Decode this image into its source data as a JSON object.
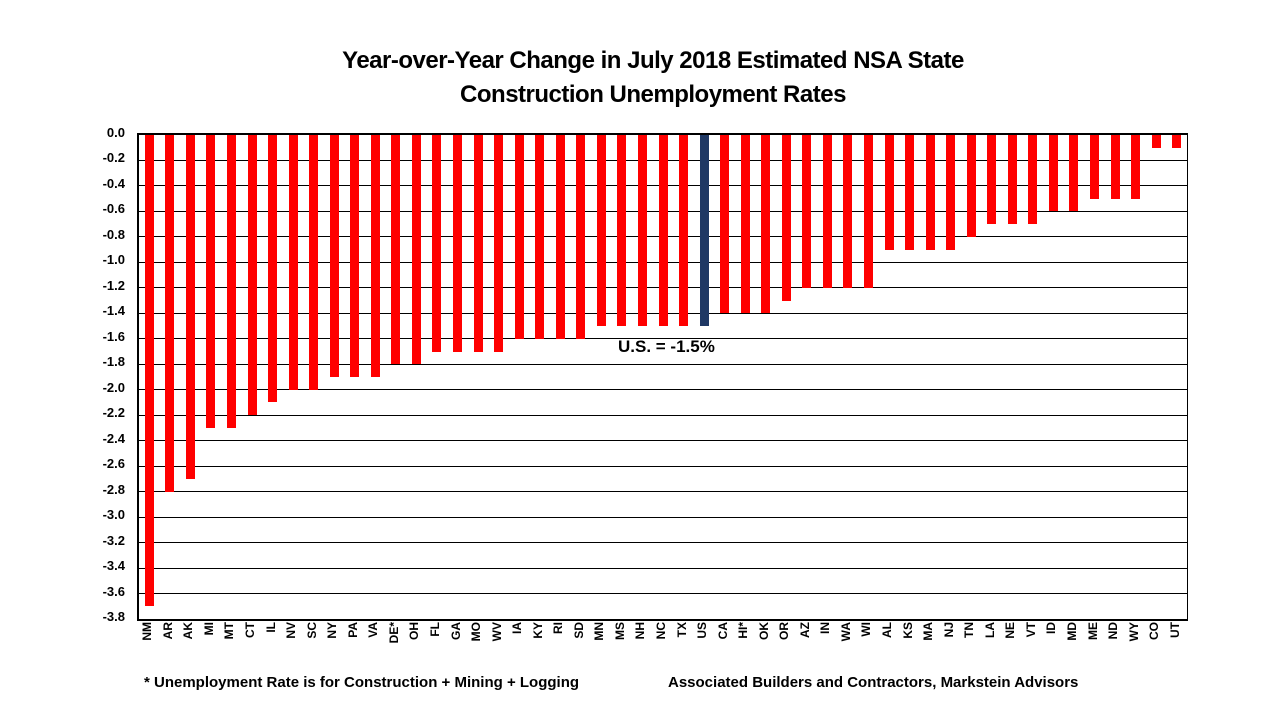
{
  "title": {
    "line1": "Year-over-Year Change in July 2018 Estimated NSA State",
    "line2": "Construction Unemployment Rates"
  },
  "annotation": {
    "us_label": "U.S. = -1.5%"
  },
  "footnotes": {
    "left": "* Unemployment Rate is for Construction + Mining + Logging",
    "right": "Associated Builders and Contractors, Markstein Advisors"
  },
  "colors": {
    "bar": "#FF0000",
    "highlight_bar": "#1F3864",
    "grid": "#000000",
    "text": "#000000",
    "background": "#FFFFFF"
  },
  "chart_data": {
    "type": "bar",
    "title": "Year-over-Year Change in July 2018 Estimated NSA State Construction Unemployment Rates",
    "xlabel": "",
    "ylabel": "",
    "ylim": [
      -3.8,
      0.0
    ],
    "ytick_step": 0.2,
    "grid": true,
    "legend": false,
    "highlight_category": "US",
    "categories": [
      "NM",
      "AR",
      "AK",
      "MI",
      "MT",
      "CT",
      "IL",
      "NV",
      "SC",
      "NY",
      "PA",
      "VA",
      "DE*",
      "OH",
      "FL",
      "GA",
      "MO",
      "WV",
      "IA",
      "KY",
      "RI",
      "SD",
      "MN",
      "MS",
      "NH",
      "NC",
      "TX",
      "US",
      "CA",
      "HI*",
      "OK",
      "OR",
      "AZ",
      "IN",
      "WA",
      "WI",
      "AL",
      "KS",
      "MA",
      "NJ",
      "TN",
      "LA",
      "NE",
      "VT",
      "ID",
      "MD",
      "ME",
      "ND",
      "WY",
      "CO",
      "UT"
    ],
    "values": [
      -3.7,
      -2.8,
      -2.7,
      -2.3,
      -2.3,
      -2.2,
      -2.1,
      -2.0,
      -2.0,
      -1.9,
      -1.9,
      -1.9,
      -1.8,
      -1.8,
      -1.7,
      -1.7,
      -1.7,
      -1.7,
      -1.6,
      -1.6,
      -1.6,
      -1.6,
      -1.5,
      -1.5,
      -1.5,
      -1.5,
      -1.5,
      -1.5,
      -1.4,
      -1.4,
      -1.4,
      -1.3,
      -1.2,
      -1.2,
      -1.2,
      -1.2,
      -0.9,
      -0.9,
      -0.9,
      -0.9,
      -0.8,
      -0.7,
      -0.7,
      -0.7,
      -0.6,
      -0.6,
      -0.5,
      -0.5,
      -0.5,
      -0.1,
      -0.1
    ]
  }
}
